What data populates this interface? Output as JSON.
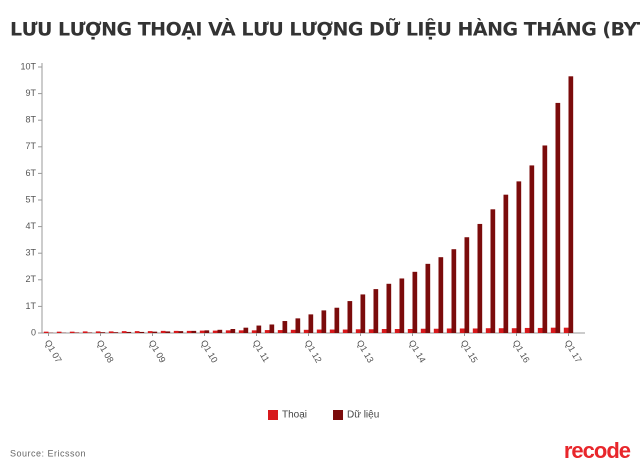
{
  "chart_data": {
    "type": "bar",
    "title": "LƯU LƯỢNG THOẠI VÀ LƯU LƯỢNG DỮ LIỆU HÀNG THÁNG (BYTE)",
    "categories": [
      "Q1 07",
      null,
      null,
      null,
      "Q1 08",
      null,
      null,
      null,
      "Q1 09",
      null,
      null,
      null,
      "Q1 10",
      null,
      null,
      null,
      "Q1 11",
      null,
      null,
      null,
      "Q1 12",
      null,
      null,
      null,
      "Q1 13",
      null,
      null,
      null,
      "Q1 14",
      null,
      null,
      null,
      "Q1 15",
      null,
      null,
      null,
      "Q1 16",
      null,
      null,
      null,
      "Q1 17"
    ],
    "series": [
      {
        "name": "Thoại",
        "color": "#d7191c",
        "values": [
          0.05,
          0.05,
          0.05,
          0.06,
          0.06,
          0.06,
          0.07,
          0.07,
          0.07,
          0.08,
          0.08,
          0.08,
          0.09,
          0.09,
          0.1,
          0.1,
          0.1,
          0.11,
          0.11,
          0.12,
          0.12,
          0.13,
          0.13,
          0.13,
          0.14,
          0.14,
          0.15,
          0.15,
          0.15,
          0.16,
          0.16,
          0.17,
          0.17,
          0.17,
          0.18,
          0.18,
          0.18,
          0.19,
          0.19,
          0.2,
          0.2
        ]
      },
      {
        "name": "Dữ liệu",
        "color": "#7b0b0b",
        "values": [
          0.01,
          0.01,
          0.02,
          0.02,
          0.03,
          0.03,
          0.04,
          0.04,
          0.05,
          0.06,
          0.07,
          0.08,
          0.1,
          0.12,
          0.15,
          0.2,
          0.28,
          0.32,
          0.45,
          0.55,
          0.7,
          0.85,
          0.95,
          1.2,
          1.45,
          1.65,
          1.85,
          2.05,
          2.3,
          2.6,
          2.85,
          3.15,
          3.6,
          4.1,
          4.65,
          5.2,
          5.7,
          6.3,
          7.05,
          8.65,
          9.65
        ]
      }
    ],
    "ylim": [
      0,
      10
    ],
    "yticks": [
      0,
      {
        "value": 1,
        "label": "1T"
      },
      {
        "value": 2,
        "label": "2T"
      },
      {
        "value": 3,
        "label": "3T"
      },
      {
        "value": 4,
        "label": "4T"
      },
      {
        "value": 5,
        "label": "5T"
      },
      {
        "value": 6,
        "label": "6T"
      },
      {
        "value": 7,
        "label": "7T"
      },
      {
        "value": 8,
        "label": "8T"
      },
      {
        "value": 9,
        "label": "9T"
      },
      {
        "value": 10,
        "label": "10T"
      }
    ],
    "grid": false,
    "legend": "bottom",
    "source": "Source: Ericsson",
    "logo": "recode"
  }
}
